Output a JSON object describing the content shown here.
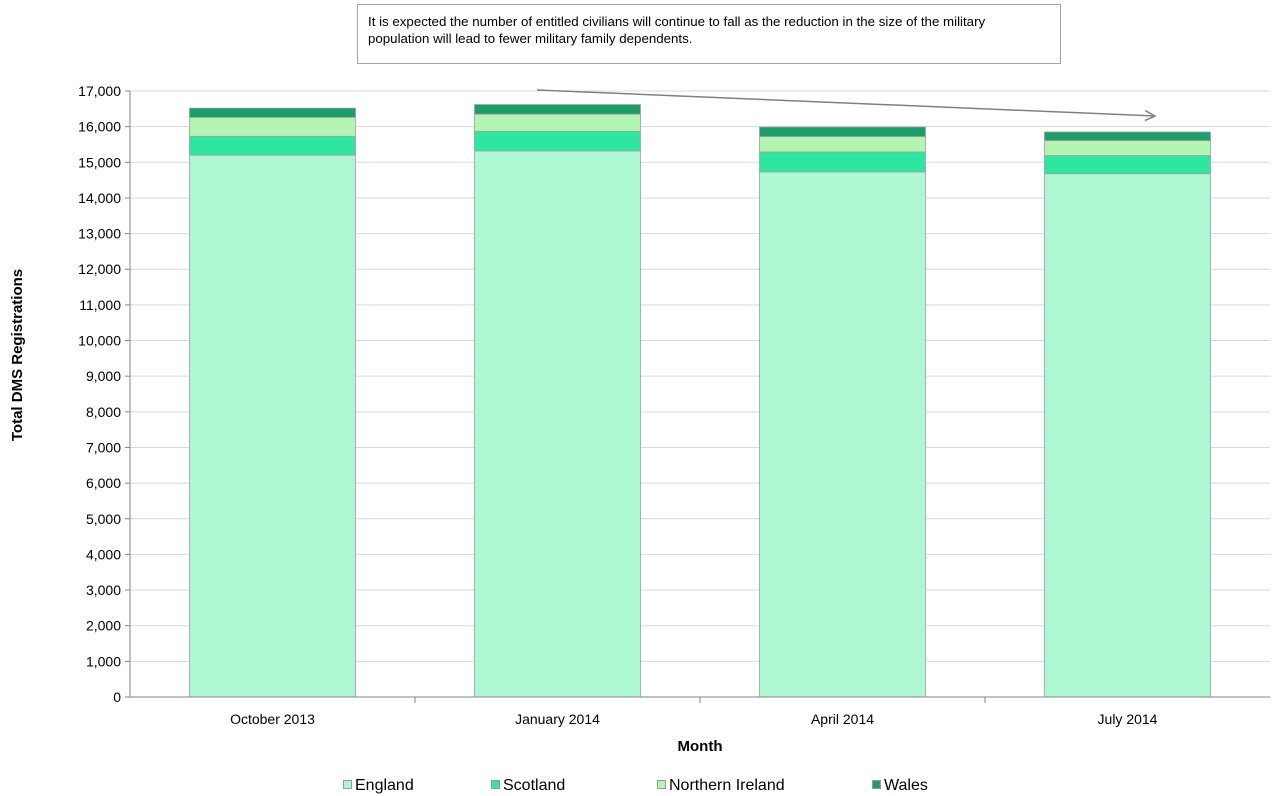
{
  "annotation": {
    "text": "It is expected the number of entitled civilians will continue to fall as the reduction in the size of the military population will lead to fewer  military family dependents."
  },
  "chart_data": {
    "type": "bar",
    "stacked": true,
    "categories": [
      "October 2013",
      "January 2014",
      "April 2014",
      "July 2014"
    ],
    "series": [
      {
        "name": "England",
        "color": "#adf7d3",
        "values": [
          15200,
          15320,
          14730,
          14680
        ]
      },
      {
        "name": "Scotland",
        "color": "#2ee6a0",
        "values": [
          530,
          550,
          560,
          510
        ]
      },
      {
        "name": "Northern Ireland",
        "color": "#b2f5b2",
        "values": [
          530,
          480,
          430,
          420
        ]
      },
      {
        "name": "Wales",
        "color": "#1c9e6c",
        "values": [
          260,
          270,
          270,
          240
        ]
      }
    ],
    "xlabel": "Month",
    "ylabel": "Total DMS Registrations",
    "ylim": [
      0,
      17000
    ],
    "yticks": [
      "0",
      "1,000",
      "2,000",
      "3,000",
      "4,000",
      "5,000",
      "6,000",
      "7,000",
      "8,000",
      "9,000",
      "10,000",
      "11,000",
      "12,000",
      "13,000",
      "14,000",
      "15,000",
      "16,000",
      "17,000"
    ],
    "grid": true,
    "legend_position": "bottom"
  }
}
